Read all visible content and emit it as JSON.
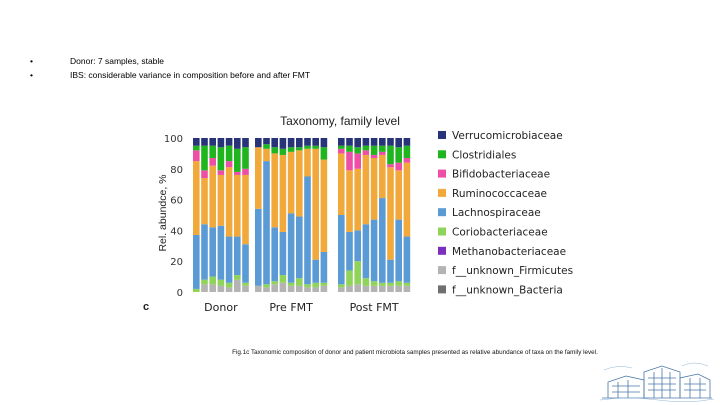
{
  "slide": {
    "bullets": [
      {
        "marker": "•",
        "text": "Donor: 7 samples, stable"
      },
      {
        "marker": "•",
        "text": "IBS: considerable variance in composition before and after FMT"
      }
    ],
    "caption": "Fig.1c Taxonomic composition of donor and patient microbiota samples presented as relative abundance of taxa on the family level.",
    "panel_letter": "c"
  },
  "chart_data": {
    "type": "bar",
    "stacked": true,
    "title": "Taxonomy, family level",
    "ylabel": "Rel. abundce, %",
    "ylim": [
      0,
      100
    ],
    "yticks": [
      "0",
      "20",
      "40",
      "60",
      "80",
      "100"
    ],
    "grid": false,
    "legend_placement": "right",
    "groups": [
      {
        "label": "Donor",
        "count": 7
      },
      {
        "label": "Pre FMT",
        "count": 9
      },
      {
        "label": "Post FMT",
        "count": 9
      }
    ],
    "series": [
      {
        "name": "f__unknown_Bacteria",
        "color": "#6f6f6f"
      },
      {
        "name": "f__unknown_Firmicutes",
        "color": "#b4b4b4"
      },
      {
        "name": "Methanobacteriaceae",
        "color": "#7b2fbe"
      },
      {
        "name": "Coriobacteriaceae",
        "color": "#8fd35a"
      },
      {
        "name": "Lachnospiraceae",
        "color": "#5b9bd5"
      },
      {
        "name": "Ruminococcaceae",
        "color": "#f2a93b"
      },
      {
        "name": "Bifidobacteriaceae",
        "color": "#ee4fa6"
      },
      {
        "name": "Clostridiales",
        "color": "#1fb51f"
      },
      {
        "name": "Verrucomicrobiaceae",
        "color": "#27347a"
      }
    ],
    "bars": [
      {
        "group": "Donor",
        "values": {
          "Bifidobacteriaceae": 7,
          "Coriobacteriaceae": 2,
          "Lachnospiraceae": 35,
          "Ruminococcaceae": 48,
          "Clostridiales": 3,
          "f__unknown_Firmicutes": 0,
          "Verrucomicrobiaceae": 5
        }
      },
      {
        "group": "Donor",
        "values": {
          "Bifidobacteriaceae": 5,
          "Coriobacteriaceae": 3,
          "Lachnospiraceae": 36,
          "Ruminococcaceae": 30,
          "Clostridiales": 16,
          "f__unknown_Firmicutes": 5,
          "Verrucomicrobiaceae": 5
        }
      },
      {
        "group": "Donor",
        "values": {
          "Bifidobacteriaceae": 5,
          "Coriobacteriaceae": 5,
          "Lachnospiraceae": 32,
          "Ruminococcaceae": 40,
          "Clostridiales": 8,
          "f__unknown_Firmicutes": 5,
          "Verrucomicrobiaceae": 5
        }
      },
      {
        "group": "Donor",
        "values": {
          "Bifidobacteriaceae": 3,
          "Coriobacteriaceae": 4,
          "Lachnospiraceae": 35,
          "Ruminococcaceae": 33,
          "Clostridiales": 15,
          "f__unknown_Firmicutes": 4,
          "Verrucomicrobiaceae": 6
        }
      },
      {
        "group": "Donor",
        "values": {
          "Bifidobacteriaceae": 4,
          "Coriobacteriaceae": 3,
          "Lachnospiraceae": 30,
          "Ruminococcaceae": 45,
          "Clostridiales": 10,
          "f__unknown_Firmicutes": 3,
          "Verrucomicrobiaceae": 5
        }
      },
      {
        "group": "Donor",
        "values": {
          "Bifidobacteriaceae": 2,
          "Coriobacteriaceae": 3,
          "Lachnospiraceae": 25,
          "Ruminococcaceae": 40,
          "Clostridiales": 15,
          "f__unknown_Firmicutes": 8,
          "Verrucomicrobiaceae": 7
        }
      },
      {
        "group": "Donor",
        "values": {
          "Bifidobacteriaceae": 4,
          "Coriobacteriaceae": 2,
          "Lachnospiraceae": 25,
          "Ruminococcaceae": 45,
          "Clostridiales": 14,
          "f__unknown_Firmicutes": 4,
          "Verrucomicrobiaceae": 6
        }
      },
      {
        "group": "Pre FMT",
        "values": {
          "Bifidobacteriaceae": 0,
          "Coriobacteriaceae": 0,
          "Lachnospiraceae": 50,
          "Ruminococcaceae": 40,
          "Clostridiales": 0,
          "f__unknown_Firmicutes": 4,
          "Verrucomicrobiaceae": 6
        }
      },
      {
        "group": "Pre FMT",
        "values": {
          "Bifidobacteriaceae": 0,
          "Coriobacteriaceae": 2,
          "Lachnospiraceae": 80,
          "Ruminococcaceae": 8,
          "Clostridiales": 3,
          "f__unknown_Firmicutes": 3,
          "Verrucomicrobiaceae": 4
        }
      },
      {
        "group": "Pre FMT",
        "values": {
          "Bifidobacteriaceae": 0,
          "Coriobacteriaceae": 2,
          "Lachnospiraceae": 35,
          "Ruminococcaceae": 48,
          "Clostridiales": 4,
          "f__unknown_Firmicutes": 5,
          "Verrucomicrobiaceae": 6
        }
      },
      {
        "group": "Pre FMT",
        "values": {
          "Bifidobacteriaceae": 0,
          "Coriobacteriaceae": 5,
          "Lachnospiraceae": 28,
          "Ruminococcaceae": 50,
          "Clostridiales": 4,
          "f__unknown_Firmicutes": 6,
          "Verrucomicrobiaceae": 7
        }
      },
      {
        "group": "Pre FMT",
        "values": {
          "Bifidobacteriaceae": 0,
          "Coriobacteriaceae": 2,
          "Lachnospiraceae": 45,
          "Ruminococcaceae": 40,
          "Clostridiales": 3,
          "f__unknown_Firmicutes": 4,
          "Verrucomicrobiaceae": 6
        }
      },
      {
        "group": "Pre FMT",
        "values": {
          "Bifidobacteriaceae": 0,
          "Coriobacteriaceae": 5,
          "Lachnospiraceae": 40,
          "Ruminococcaceae": 43,
          "Clostridiales": 2,
          "f__unknown_Firmicutes": 4,
          "Verrucomicrobiaceae": 6
        }
      },
      {
        "group": "Pre FMT",
        "values": {
          "Bifidobacteriaceae": 0,
          "Coriobacteriaceae": 2,
          "Lachnospiraceae": 70,
          "Ruminococcaceae": 18,
          "Clostridiales": 2,
          "f__unknown_Firmicutes": 3,
          "Verrucomicrobiaceae": 5
        }
      },
      {
        "group": "Pre FMT",
        "values": {
          "Bifidobacteriaceae": 0,
          "Coriobacteriaceae": 3,
          "Lachnospiraceae": 15,
          "Ruminococcaceae": 72,
          "Clostridiales": 2,
          "f__unknown_Firmicutes": 3,
          "Verrucomicrobiaceae": 5
        }
      },
      {
        "group": "Pre FMT",
        "values": {
          "Bifidobacteriaceae": 0,
          "Coriobacteriaceae": 2,
          "Lachnospiraceae": 20,
          "Ruminococcaceae": 60,
          "Clostridiales": 8,
          "f__unknown_Firmicutes": 4,
          "Verrucomicrobiaceae": 6
        }
      },
      {
        "group": "Post FMT",
        "values": {
          "Bifidobacteriaceae": 3,
          "Coriobacteriaceae": 2,
          "Lachnospiraceae": 45,
          "Ruminococcaceae": 40,
          "Clostridiales": 2,
          "f__unknown_Firmicutes": 3,
          "Verrucomicrobiaceae": 5
        }
      },
      {
        "group": "Post FMT",
        "values": {
          "Bifidobacteriaceae": 12,
          "Coriobacteriaceae": 10,
          "Lachnospiraceae": 25,
          "Ruminococcaceae": 40,
          "Clostridiales": 4,
          "f__unknown_Firmicutes": 4,
          "Verrucomicrobiaceae": 5
        }
      },
      {
        "group": "Post FMT",
        "values": {
          "Bifidobacteriaceae": 10,
          "Coriobacteriaceae": 15,
          "Lachnospiraceae": 20,
          "Ruminococcaceae": 40,
          "Clostridiales": 4,
          "f__unknown_Firmicutes": 5,
          "Verrucomicrobiaceae": 6
        }
      },
      {
        "group": "Post FMT",
        "values": {
          "Bifidobacteriaceae": 3,
          "Coriobacteriaceae": 5,
          "Lachnospiraceae": 35,
          "Ruminococcaceae": 45,
          "Clostridiales": 3,
          "f__unknown_Firmicutes": 4,
          "Verrucomicrobiaceae": 5
        }
      },
      {
        "group": "Post FMT",
        "values": {
          "Bifidobacteriaceae": 2,
          "Coriobacteriaceae": 3,
          "Lachnospiraceae": 40,
          "Ruminococcaceae": 40,
          "Clostridiales": 6,
          "f__unknown_Firmicutes": 4,
          "Verrucomicrobiaceae": 5
        }
      },
      {
        "group": "Post FMT",
        "values": {
          "Bifidobacteriaceae": 2,
          "Coriobacteriaceae": 2,
          "Lachnospiraceae": 55,
          "Ruminococcaceae": 28,
          "Clostridiales": 4,
          "f__unknown_Firmicutes": 4,
          "Verrucomicrobiaceae": 5
        }
      },
      {
        "group": "Post FMT",
        "values": {
          "Bifidobacteriaceae": 2,
          "Coriobacteriaceae": 2,
          "Lachnospiraceae": 15,
          "Ruminococcaceae": 60,
          "Clostridiales": 12,
          "f__unknown_Firmicutes": 4,
          "Verrucomicrobiaceae": 5
        }
      },
      {
        "group": "Post FMT",
        "values": {
          "Bifidobacteriaceae": 5,
          "Coriobacteriaceae": 3,
          "Lachnospiraceae": 40,
          "Ruminococcaceae": 32,
          "Clostridiales": 10,
          "f__unknown_Firmicutes": 4,
          "Verrucomicrobiaceae": 6
        }
      },
      {
        "group": "Post FMT",
        "values": {
          "Bifidobacteriaceae": 3,
          "Coriobacteriaceae": 2,
          "Lachnospiraceae": 30,
          "Ruminococcaceae": 48,
          "Clostridiales": 8,
          "f__unknown_Firmicutes": 4,
          "Verrucomicrobiaceae": 5
        }
      }
    ]
  }
}
